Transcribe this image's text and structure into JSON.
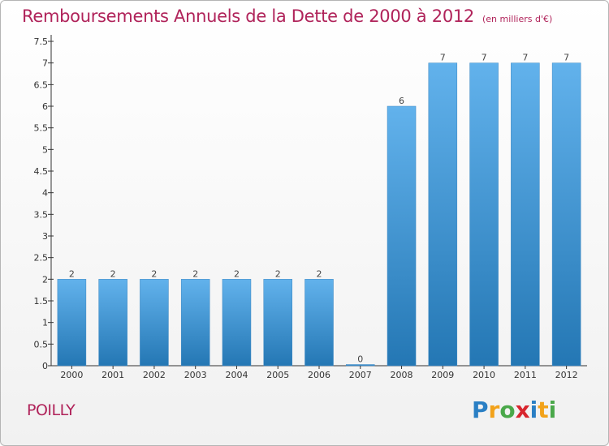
{
  "title": "Remboursements Annuels de la Dette de 2000 à 2012",
  "subtitle": "(en milliers d'€)",
  "commune": "POILLY",
  "logo": {
    "letters": [
      "P",
      "r",
      "o",
      "x",
      "i",
      "t",
      "i"
    ],
    "colors": [
      "#2a7fc4",
      "#f2a21a",
      "#4aa84a",
      "#d8262e",
      "#2a7fc4",
      "#f2a21a",
      "#4aa84a"
    ]
  },
  "colors": {
    "bar_top": "#62b2ec",
    "bar_bottom": "#2477b4",
    "title": "#b0235a"
  },
  "chart_data": {
    "type": "bar",
    "categories": [
      "2000",
      "2001",
      "2002",
      "2003",
      "2004",
      "2005",
      "2006",
      "2007",
      "2008",
      "2009",
      "2010",
      "2011",
      "2012"
    ],
    "values": [
      2,
      2,
      2,
      2,
      2,
      2,
      2,
      0,
      6,
      7,
      7,
      7,
      7
    ],
    "data_labels": [
      "2",
      "2",
      "2",
      "2",
      "2",
      "2",
      "2",
      "0",
      "6",
      "7",
      "7",
      "7",
      "7"
    ],
    "ylim": [
      0,
      7.5
    ],
    "yticks": [
      0,
      0.5,
      1,
      1.5,
      2,
      2.5,
      3,
      3.5,
      4,
      4.5,
      5,
      5.5,
      6,
      6.5,
      7,
      7.5
    ],
    "ytick_labels": [
      "0",
      "0.5",
      "1",
      "1.5",
      "2",
      "2.5",
      "3",
      "3.5",
      "4",
      "4.5",
      "5",
      "5.5",
      "6",
      "6.5",
      "7",
      "7.5"
    ],
    "xlabel": "",
    "ylabel": "",
    "grid": false
  }
}
